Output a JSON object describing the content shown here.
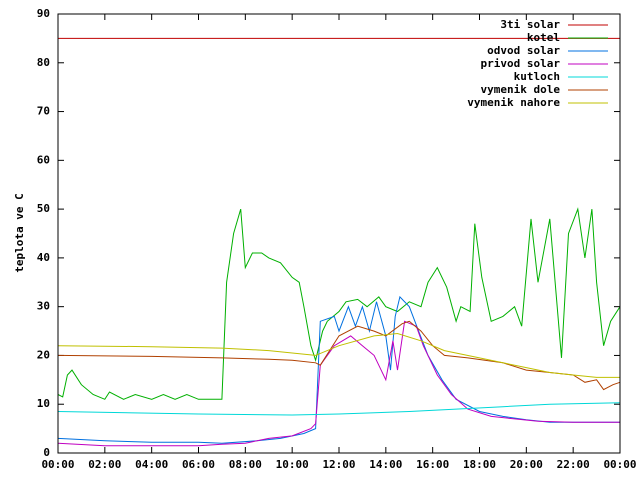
{
  "chart_data": {
    "type": "line",
    "y_label": "teplota ve C",
    "xlim": [
      0,
      24
    ],
    "xticks": [
      {
        "value": 0,
        "label": "00:00"
      },
      {
        "value": 2,
        "label": "02:00"
      },
      {
        "value": 4,
        "label": "04:00"
      },
      {
        "value": 6,
        "label": "06:00"
      },
      {
        "value": 8,
        "label": "08:00"
      },
      {
        "value": 10,
        "label": "10:00"
      },
      {
        "value": 12,
        "label": "12:00"
      },
      {
        "value": 14,
        "label": "14:00"
      },
      {
        "value": 16,
        "label": "16:00"
      },
      {
        "value": 18,
        "label": "18:00"
      },
      {
        "value": 20,
        "label": "20:00"
      },
      {
        "value": 22,
        "label": "22:00"
      },
      {
        "value": 24,
        "label": "00:00"
      }
    ],
    "ylim": [
      0,
      90
    ],
    "yticks": [
      0,
      10,
      20,
      30,
      40,
      50,
      60,
      70,
      80,
      90
    ],
    "grid": false,
    "legend": "top-right",
    "series": [
      {
        "name": "3ti solar",
        "color": "#c00000",
        "x": [
          0,
          24
        ],
        "values": [
          85,
          85
        ]
      },
      {
        "name": "kotel",
        "color": "#00b000",
        "x": [
          0,
          0.2,
          0.4,
          0.6,
          1,
          1.5,
          2,
          2.2,
          2.8,
          3.3,
          4,
          4.5,
          5,
          5.5,
          6,
          6.9,
          7,
          7.2,
          7.5,
          7.8,
          8,
          8.3,
          8.7,
          9,
          9.5,
          10,
          10.3,
          10.5,
          10.8,
          11,
          11.3,
          11.5,
          12,
          12.3,
          12.8,
          13.2,
          13.7,
          14,
          14.5,
          15,
          15.5,
          15.8,
          16.2,
          16.6,
          17,
          17.2,
          17.6,
          17.8,
          18.1,
          18.5,
          19,
          19.5,
          19.8,
          20.2,
          20.5,
          21,
          21.5,
          21.8,
          22.2,
          22.5,
          22.8,
          23,
          23.3,
          23.6,
          24
        ],
        "values": [
          12,
          11.5,
          16,
          17,
          14,
          12,
          11,
          12.5,
          11,
          12,
          11,
          12,
          11,
          12,
          11,
          11,
          11,
          35,
          45,
          50,
          38,
          41,
          41,
          40,
          39,
          36,
          35,
          30,
          22,
          19,
          25,
          27,
          29,
          31,
          31.5,
          30,
          32,
          30,
          29,
          31,
          30,
          35,
          38,
          34,
          27,
          30,
          29,
          47,
          36,
          27,
          28,
          30,
          26,
          48,
          35,
          48,
          19.5,
          45,
          50,
          40,
          50,
          35,
          22,
          27,
          30
        ]
      },
      {
        "name": "odvod solar",
        "color": "#0070e0",
        "x": [
          0,
          2,
          4,
          6,
          7,
          8.5,
          9.5,
          10.5,
          11,
          11.2,
          11.8,
          12,
          12.4,
          12.7,
          13,
          13.3,
          13.6,
          14,
          14.2,
          14.4,
          14.6,
          15,
          15.4,
          15.8,
          16.4,
          17,
          18,
          19,
          20,
          21,
          24
        ],
        "values": [
          3,
          2.5,
          2.2,
          2.2,
          2,
          2.5,
          3,
          4,
          5,
          27,
          28,
          25,
          30,
          26,
          30,
          25,
          31,
          24,
          17,
          28,
          32,
          30,
          25,
          20,
          15,
          11,
          8.5,
          7.5,
          6.8,
          6.3,
          6.3
        ]
      },
      {
        "name": "privod solar",
        "color": "#c000c0",
        "x": [
          0,
          2,
          4,
          6,
          7,
          8,
          9,
          10,
          10.8,
          11,
          11.2,
          11.8,
          12.5,
          13,
          13.5,
          14,
          14.3,
          14.5,
          14.8,
          15.3,
          15.6,
          16.2,
          16.8,
          17.5,
          18.5,
          19.5,
          20.5,
          22,
          24
        ],
        "values": [
          2,
          1.5,
          1.5,
          1.5,
          1.8,
          2,
          3,
          3.5,
          5,
          6,
          18,
          22,
          24,
          22,
          20,
          15,
          23,
          17,
          27,
          26,
          22,
          16,
          12,
          9,
          7.5,
          7,
          6.5,
          6.3,
          6.3
        ]
      },
      {
        "name": "kutloch",
        "color": "#00d8d8",
        "x": [
          0,
          6,
          10,
          12,
          15,
          17,
          19,
          21,
          24
        ],
        "values": [
          8.5,
          8,
          7.8,
          8,
          8.5,
          9,
          9.5,
          10,
          10.3
        ]
      },
      {
        "name": "vymenik dole",
        "color": "#b04000",
        "x": [
          0,
          4,
          7,
          9,
          10,
          11,
          11.2,
          12,
          12.8,
          13.5,
          14,
          14.7,
          15,
          15.5,
          16,
          16.5,
          17.5,
          19,
          20,
          21,
          22,
          22.5,
          23,
          23.3,
          23.7,
          24
        ],
        "values": [
          20,
          19.8,
          19.5,
          19.2,
          19,
          18.5,
          18,
          24,
          26,
          25,
          24,
          26.5,
          27,
          25,
          22,
          20,
          19.5,
          18.5,
          17,
          16.5,
          16,
          14.5,
          15,
          13,
          14,
          14.5
        ]
      },
      {
        "name": "vymenik nahore",
        "color": "#c0c000",
        "x": [
          0,
          4,
          7,
          9,
          10,
          11,
          12,
          13.5,
          14.5,
          15.5,
          16.5,
          18,
          19,
          20,
          21,
          22,
          23,
          24
        ],
        "values": [
          22,
          21.8,
          21.5,
          21,
          20.5,
          20,
          22,
          24,
          24.5,
          23,
          21,
          19.5,
          18.5,
          17.5,
          16.5,
          16,
          15.5,
          15.5
        ]
      }
    ]
  }
}
